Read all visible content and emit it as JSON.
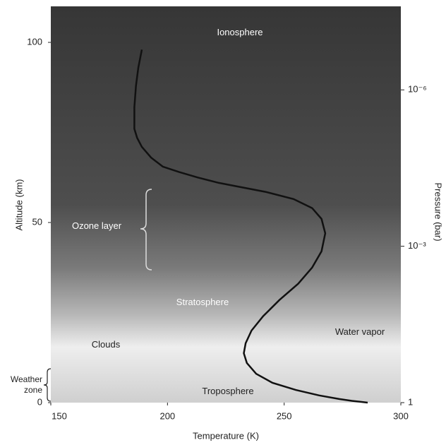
{
  "chart_data": {
    "type": "line",
    "x_label": "Temperature (K)",
    "y_label": "Altitude (km)",
    "y2_label": "Pressure (bar)",
    "x": [
      285.8,
      279,
      273.6,
      265,
      255,
      245,
      238,
      234,
      232.7,
      233.5,
      236,
      241,
      248,
      256,
      262,
      266,
      267.6,
      266,
      262,
      254,
      242,
      230,
      222,
      213,
      205,
      198,
      193,
      189,
      187,
      185.8,
      185.8,
      186.5,
      187.5,
      189
    ],
    "values": [
      0,
      0.5,
      1,
      2,
      3.5,
      5.5,
      8,
      11,
      13.7,
      16.5,
      20,
      24,
      28.5,
      33,
      37.5,
      42,
      47,
      51,
      54,
      56.5,
      58.5,
      60,
      61,
      62.5,
      64,
      65.5,
      68,
      71,
      73.5,
      76,
      82,
      88,
      93,
      98
    ],
    "color": "#111",
    "xlim": [
      150,
      300
    ],
    "xticks": [
      150,
      200,
      250,
      300
    ],
    "ylim": [
      0,
      110
    ],
    "yticks": [
      0,
      50,
      100
    ],
    "y2lim": [
      1,
      2.5e-08
    ],
    "y2_log": true,
    "y2ticks": [
      {
        "value": 1e-06,
        "label": "10⁻⁶"
      },
      {
        "value": 0.001,
        "label": "10⁻³"
      },
      1
    ],
    "annotations": [
      "Ionosphere",
      "Ozone layer",
      "Stratosphere",
      "Clouds",
      "Water vapor",
      "Weather zone",
      "Troposphere"
    ]
  }
}
